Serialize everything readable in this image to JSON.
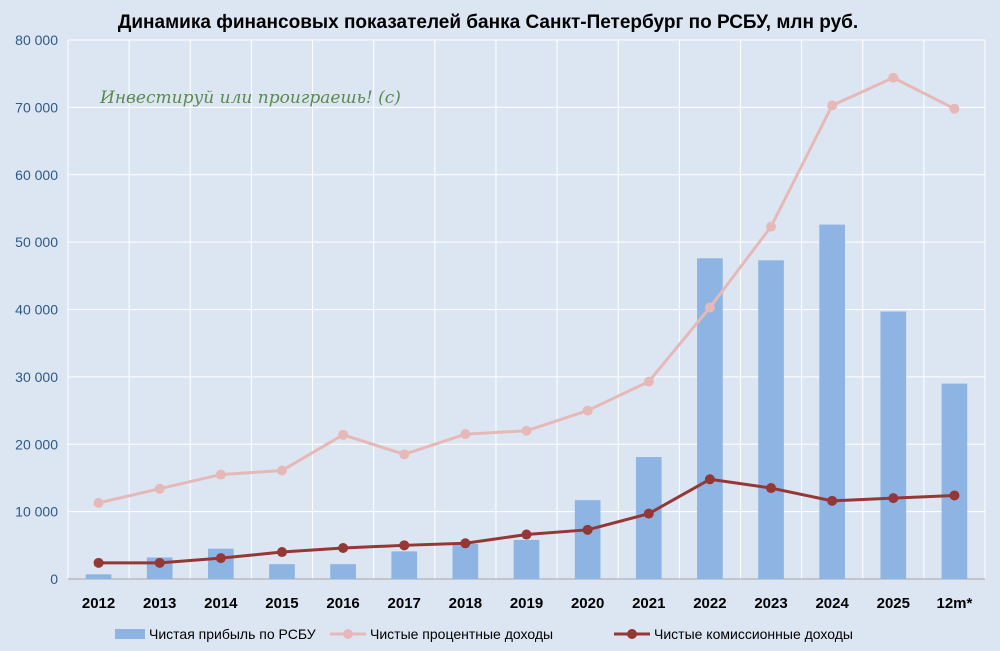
{
  "chart_data": {
    "type": "bar",
    "title": "Динамика финансовых показателей банка Санкт-Петербург по РСБУ, млн руб.",
    "annotation": "Инвестируй или проиграешь! (с)",
    "categories": [
      "2012",
      "2013",
      "2014",
      "2015",
      "2016",
      "2017",
      "2018",
      "2019",
      "2020",
      "2021",
      "2022",
      "2023",
      "2024",
      "2025",
      "12m*"
    ],
    "ylim": [
      0,
      80000
    ],
    "yticks": [
      0,
      10000,
      20000,
      30000,
      40000,
      50000,
      60000,
      70000,
      80000
    ],
    "ytick_labels": [
      "0",
      "10 000",
      "20 000",
      "30 000",
      "40 000",
      "50 000",
      "60 000",
      "70 000",
      "80 000"
    ],
    "grid": true,
    "legend_position": "bottom",
    "series": [
      {
        "name": "Чистая прибыль по РСБУ",
        "type": "bar",
        "color": "#8eb4e3",
        "values": [
          700,
          3200,
          4500,
          2200,
          2200,
          4100,
          5200,
          5800,
          11700,
          18100,
          47600,
          47300,
          52600,
          39700,
          29000
        ]
      },
      {
        "name": "Чистые процентные доходы",
        "type": "line",
        "color": "#e6b9b8",
        "values": [
          11300,
          13400,
          15500,
          16100,
          21400,
          18500,
          21500,
          22000,
          25000,
          29300,
          40300,
          52300,
          70300,
          74400,
          69800
        ]
      },
      {
        "name": "Чистые комиссионные доходы",
        "type": "line",
        "color": "#953735",
        "values": [
          2400,
          2400,
          3100,
          4000,
          4600,
          5000,
          5300,
          6600,
          7300,
          9700,
          14800,
          13500,
          11600,
          12000,
          12400
        ]
      }
    ]
  }
}
